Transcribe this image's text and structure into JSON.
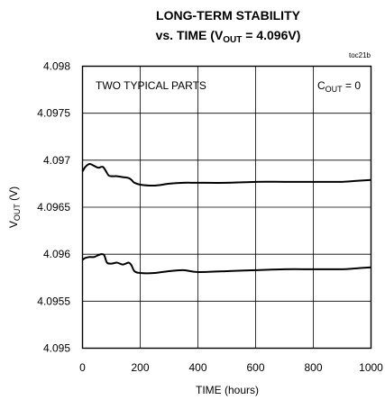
{
  "chart_data": {
    "type": "line",
    "title_line1": "LONG-TERM STABILITY",
    "title_line2_prefix": "vs. TIME (V",
    "title_line2_sub": "OUT",
    "title_line2_suffix": " = 4.096V)",
    "figure_id": "toc21b",
    "annotation": "TWO TYPICAL PARTS",
    "cout_main": "C",
    "cout_sub": "OUT",
    "cout_suffix": " = 0",
    "xlabel": "TIME (hours)",
    "ylabel_main": "V",
    "ylabel_sub": "OUT",
    "ylabel_suffix": " (V)",
    "xlim": [
      0,
      1000
    ],
    "ylim": [
      4.095,
      4.098
    ],
    "grid": true,
    "x_ticks": [
      "0",
      "200",
      "400",
      "600",
      "800",
      "1000"
    ],
    "x_tick_values": [
      0,
      200,
      400,
      600,
      800,
      1000
    ],
    "y_ticks": [
      "4.095",
      "4.0955",
      "4.096",
      "4.0965",
      "4.097",
      "4.0975",
      "4.098"
    ],
    "y_tick_values": [
      4.095,
      4.0955,
      4.096,
      4.0965,
      4.097,
      4.0975,
      4.098
    ],
    "series": [
      {
        "x": [
          0,
          10,
          25,
          40,
          55,
          70,
          80,
          90,
          100,
          120,
          140,
          160,
          170,
          180,
          200,
          250,
          300,
          350,
          400,
          500,
          600,
          700,
          800,
          900,
          950,
          1000
        ],
        "values": [
          4.09688,
          4.09693,
          4.09696,
          4.09694,
          4.09692,
          4.09693,
          4.09689,
          4.09684,
          4.09683,
          4.09683,
          4.09682,
          4.09681,
          4.09679,
          4.09676,
          4.09674,
          4.09673,
          4.09675,
          4.09676,
          4.09676,
          4.09676,
          4.09677,
          4.09677,
          4.09677,
          4.09677,
          4.09678,
          4.09679
        ]
      },
      {
        "x": [
          0,
          10,
          25,
          40,
          55,
          65,
          75,
          85,
          100,
          120,
          140,
          160,
          170,
          180,
          200,
          250,
          300,
          350,
          400,
          500,
          600,
          700,
          800,
          900,
          950,
          1000
        ],
        "values": [
          4.09594,
          4.09596,
          4.09597,
          4.09597,
          4.09599,
          4.096,
          4.09599,
          4.09591,
          4.0959,
          4.09591,
          4.09589,
          4.09591,
          4.09588,
          4.09582,
          4.0958,
          4.0958,
          4.09582,
          4.09583,
          4.09581,
          4.09582,
          4.09583,
          4.09584,
          4.09584,
          4.09584,
          4.09585,
          4.09586
        ]
      }
    ]
  }
}
